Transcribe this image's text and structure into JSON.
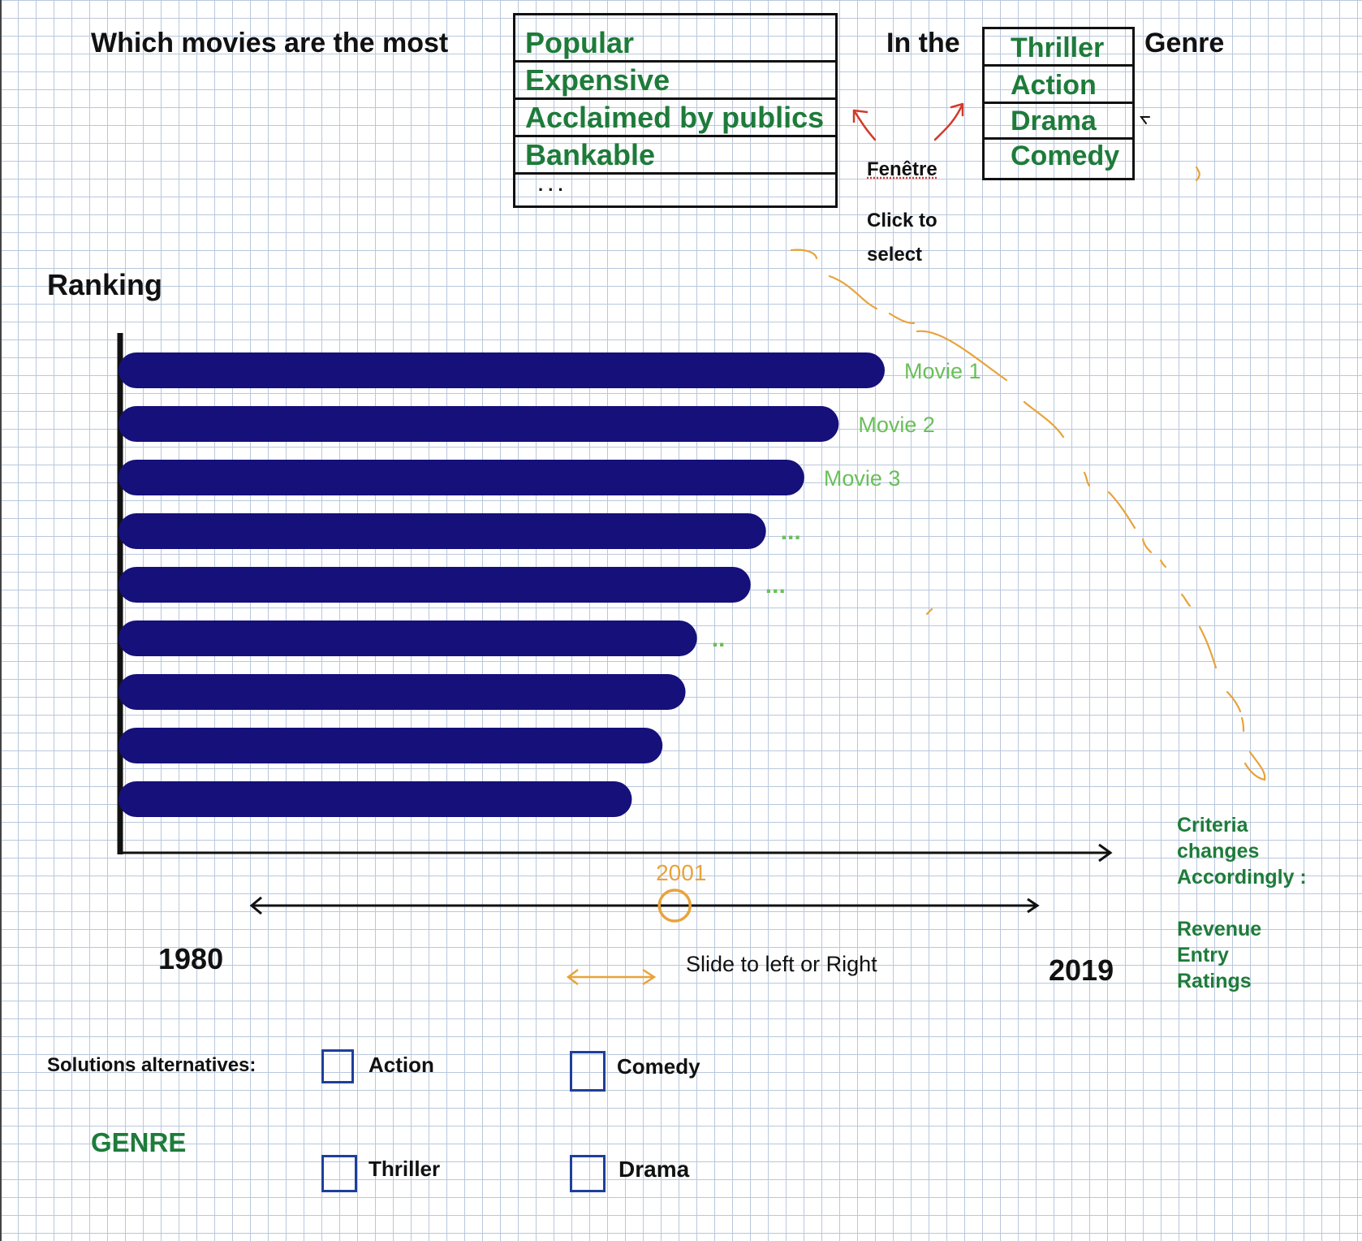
{
  "header": {
    "question_start": "Which movies are the most",
    "in_the": "In the",
    "genre_suffix": "Genre"
  },
  "criteria_dropdown": {
    "items": [
      "Popular",
      "Expensive",
      "Acclaimed by publics",
      "Bankable",
      ". . ."
    ]
  },
  "genre_dropdown": {
    "items": [
      "Thriller",
      "Action",
      "Drama",
      "Comedy"
    ]
  },
  "annotations": {
    "fenetre": "Fenêtre",
    "click_to": "Click to",
    "select": "select",
    "criteria_changes": [
      "Criteria",
      "changes",
      "Accordingly :"
    ],
    "criteria_examples": [
      "Revenue",
      "Entry",
      "Ratings"
    ],
    "slide_hint": "Slide to left or Right"
  },
  "chart_data": {
    "type": "bar",
    "orientation": "horizontal",
    "ylabel": "Ranking",
    "bar_color": "#15107a",
    "labels": [
      "Movie 1",
      "Movie 2",
      "Movie 3",
      "...",
      "...",
      "..",
      "",
      "",
      ""
    ],
    "values": [
      100,
      94,
      89.5,
      84.5,
      82.5,
      75.5,
      74,
      71,
      67
    ]
  },
  "year_slider": {
    "min_label": "1980",
    "max_label": "2019",
    "value_label": "2001",
    "min": 1980,
    "max": 2019,
    "value": 2001
  },
  "alternatives": {
    "title": "Solutions alternatives:",
    "subtitle": "GENRE",
    "options": [
      "Action",
      "Comedy",
      "Thriller",
      "Drama"
    ]
  },
  "colors": {
    "green": "#1e7b3a",
    "light_green": "#6abf5a",
    "orange": "#e8a33a",
    "red": "#d23a2a",
    "bar": "#15107a"
  }
}
